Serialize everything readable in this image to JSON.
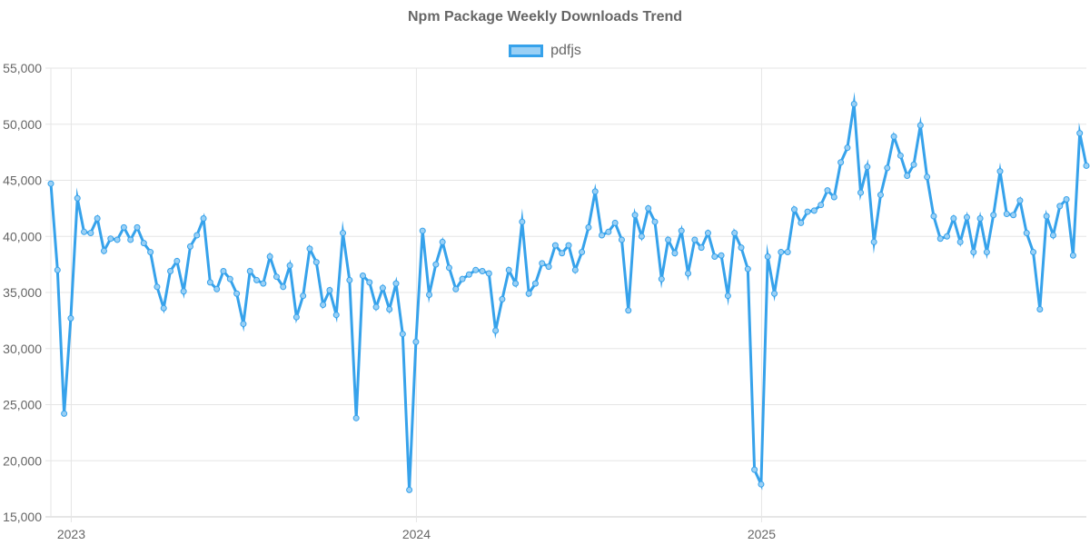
{
  "chart_data": {
    "type": "line",
    "title": "Npm Package Weekly Downloads Trend",
    "xlabel": "",
    "ylabel": "",
    "ylim": [
      15000,
      55000
    ],
    "yticks": [
      15000,
      20000,
      25000,
      30000,
      35000,
      40000,
      45000,
      50000,
      55000
    ],
    "ytick_labels": [
      "15,000",
      "20,000",
      "25,000",
      "30,000",
      "35,000",
      "40,000",
      "45,000",
      "50,000",
      "55,000"
    ],
    "xticks": [
      {
        "label": "2023",
        "index": 3
      },
      {
        "label": "2024",
        "index": 55
      },
      {
        "label": "2025",
        "index": 107
      }
    ],
    "grid": true,
    "legend_position": "top",
    "series": [
      {
        "name": "pdfjs",
        "color": "#36a2eb",
        "fill": "#9ad0f5",
        "values": [
          44700,
          37000,
          24200,
          32700,
          43400,
          40400,
          40300,
          41600,
          38700,
          39800,
          39700,
          40800,
          39700,
          40800,
          39400,
          38600,
          35500,
          33600,
          36900,
          37800,
          35100,
          39100,
          40100,
          41600,
          35900,
          35300,
          36900,
          36200,
          34900,
          32200,
          36900,
          36100,
          35800,
          38200,
          36400,
          35500,
          37400,
          32800,
          34700,
          38900,
          37700,
          33900,
          35200,
          33000,
          40300,
          36100,
          23800,
          36500,
          35900,
          33700,
          35400,
          33500,
          35800,
          31300,
          17400,
          30600,
          40500,
          34800,
          37500,
          39500,
          37200,
          35300,
          36200,
          36600,
          37000,
          36900,
          36700,
          31600,
          34400,
          37000,
          35800,
          41300,
          34900,
          35800,
          37600,
          37300,
          39200,
          38500,
          39200,
          37000,
          38600,
          40800,
          44000,
          40100,
          40400,
          41200,
          39700,
          33400,
          41900,
          40000,
          42500,
          41300,
          36200,
          39700,
          38500,
          40500,
          36700,
          39700,
          39000,
          40300,
          38200,
          38300,
          34700,
          40300,
          39000,
          37100,
          19200,
          17900,
          38200,
          34900,
          38600,
          38600,
          42400,
          41200,
          42200,
          42300,
          42800,
          44100,
          43500,
          46600,
          47900,
          51800,
          43900,
          46200,
          39500,
          43700,
          46100,
          48900,
          47200,
          45400,
          46400,
          49900,
          45300,
          41800,
          39800,
          40000,
          41600,
          39500,
          41700,
          38600,
          41600,
          38600,
          41900,
          45800,
          42000,
          41900,
          43200,
          40300,
          38600,
          33500,
          41800,
          40100,
          42700,
          43300,
          38300,
          49200,
          46300
        ]
      }
    ]
  },
  "legend": {
    "label": "pdfjs"
  },
  "title": "Npm Package Weekly Downloads Trend"
}
